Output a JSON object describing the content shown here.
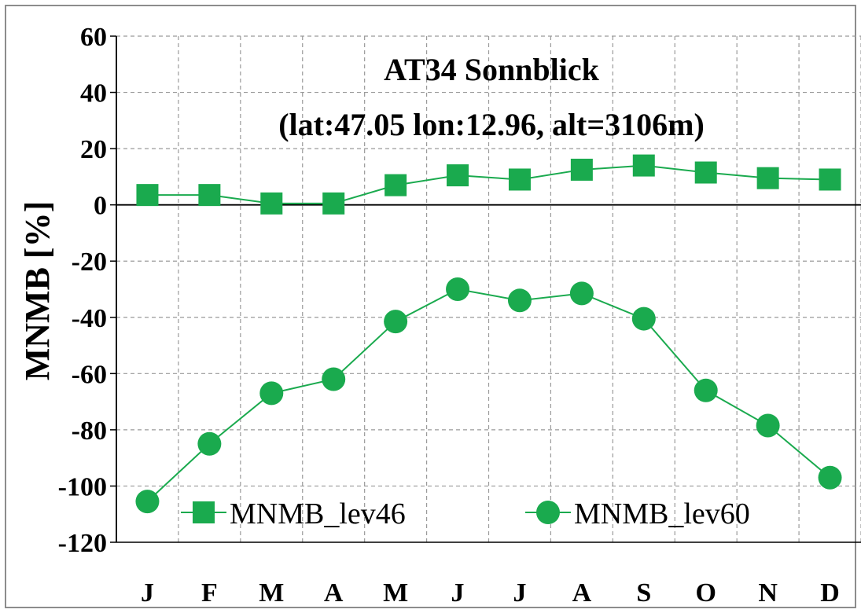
{
  "chart_data": {
    "type": "line",
    "title": "AT34 Sonnblick",
    "subtitle": "(lat:47.05 lon:12.96, alt=3106m)",
    "xlabel": "",
    "ylabel": "MNMB [%]",
    "ylim": [
      -120,
      60
    ],
    "yticks": [
      "60",
      "40",
      "20",
      "0",
      "-20",
      "-40",
      "-60",
      "-80",
      "-100",
      "-120"
    ],
    "categories": [
      "J",
      "F",
      "M",
      "A",
      "M",
      "J",
      "J",
      "A",
      "S",
      "O",
      "N",
      "D"
    ],
    "grid": true,
    "legend_position": "bottom-inside",
    "series": [
      {
        "name": "MNMB_lev46",
        "marker": "square",
        "color": "#1aaa4e",
        "values": [
          3.5,
          3.5,
          0.5,
          0.5,
          7,
          10.5,
          9,
          12.5,
          14,
          11.5,
          9.5,
          9
        ]
      },
      {
        "name": "MNMB_lev60",
        "marker": "circle",
        "color": "#1aaa4e",
        "values": [
          -105.5,
          -85,
          -67,
          -62,
          -41.5,
          -30,
          -34,
          -31.5,
          -40.5,
          -66,
          -78.5,
          -97
        ]
      }
    ]
  }
}
